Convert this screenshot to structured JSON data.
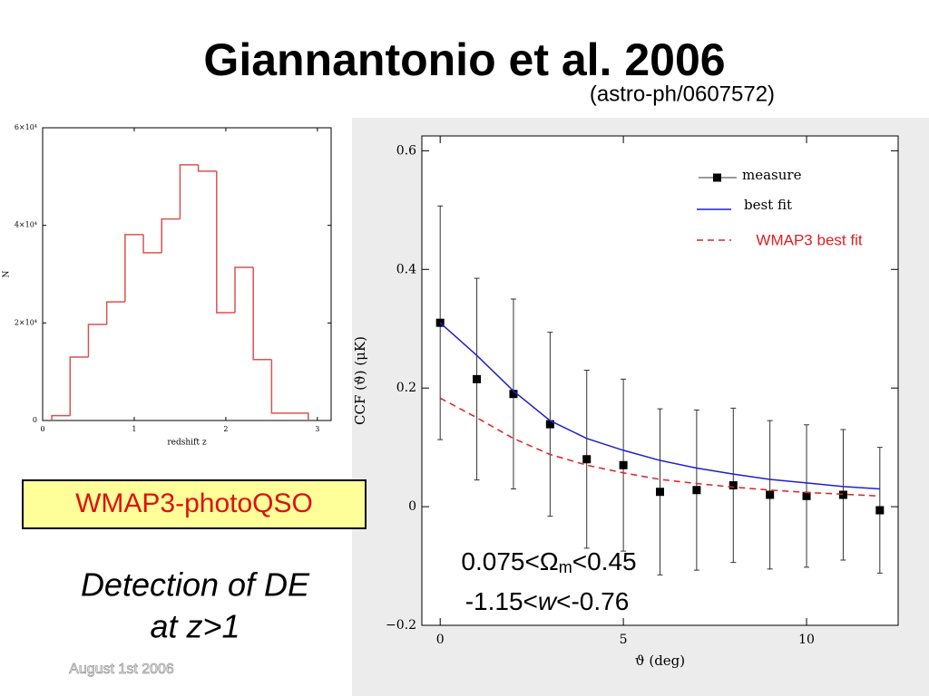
{
  "title": "Giannantonio et al. 2006",
  "subtitle": "(astro-ph/0607572)",
  "box_label": "WMAP3-photoQSO",
  "detection": [
    "Detection of DE",
    "at z>1"
  ],
  "date": "August 1st 2006",
  "chart_data": [
    {
      "type": "histogram",
      "xlabel": "redshift z",
      "ylabel": "N",
      "color": "#d9534f",
      "bins": [
        0.1,
        0.3,
        0.5,
        0.7,
        0.9,
        1.1,
        1.3,
        1.5,
        1.7,
        1.9,
        2.1,
        2.3,
        2.5,
        2.7,
        2.9
      ],
      "values": [
        1000,
        13000,
        19700,
        24300,
        38100,
        34400,
        41300,
        52400,
        51100,
        22100,
        31400,
        12500,
        1500,
        1500
      ],
      "xlim": [
        0,
        3.15
      ],
      "ylim": [
        0,
        60000
      ],
      "xticks": [
        0,
        1,
        2,
        3
      ],
      "yticks": [
        0,
        {
          "value": 20000,
          "label": "2×10⁴"
        },
        {
          "value": 40000,
          "label": "4×10⁴"
        },
        {
          "value": 60000,
          "label": "6×10⁴"
        }
      ]
    },
    {
      "type": "errorbar",
      "xlabel": "ϑ (deg)",
      "ylabel": "CCF (ϑ)    (μK)",
      "x": [
        0,
        1,
        2,
        3,
        4,
        5,
        6,
        7,
        8,
        9,
        10,
        11,
        12
      ],
      "series": [
        {
          "name": "measure",
          "color": "#000000",
          "values": [
            0.31,
            0.215,
            0.19,
            0.139,
            0.08,
            0.07,
            0.025,
            0.028,
            0.036,
            0.02,
            0.018,
            0.02,
            -0.006
          ],
          "errors": [
            0.197,
            0.17,
            0.16,
            0.155,
            0.15,
            0.145,
            0.14,
            0.135,
            0.13,
            0.125,
            0.12,
            0.11,
            0.106
          ]
        },
        {
          "name": "best fit",
          "color": "#1f1fd0",
          "values": [
            0.31,
            0.255,
            0.195,
            0.145,
            0.115,
            0.095,
            0.078,
            0.065,
            0.055,
            0.046,
            0.04,
            0.034,
            0.03
          ]
        },
        {
          "name": "WMAP3 best fit",
          "color": "#e02020",
          "dashed": true,
          "values": [
            0.183,
            0.15,
            0.115,
            0.088,
            0.07,
            0.057,
            0.046,
            0.039,
            0.033,
            0.028,
            0.024,
            0.021,
            0.018
          ]
        }
      ],
      "xlim": [
        -0.5,
        12.5
      ],
      "ylim": [
        -0.2,
        0.625
      ],
      "xticks": [
        0,
        5,
        10
      ],
      "yticks": [
        {
          "value": -0.2,
          "label": "−0.2"
        },
        0,
        0.2,
        0.4,
        0.6
      ],
      "annotations": [
        [
          "0.075<Ω",
          "m",
          "<0.45"
        ],
        [
          "-1.15<",
          "w",
          "<-0.76"
        ]
      ]
    }
  ]
}
